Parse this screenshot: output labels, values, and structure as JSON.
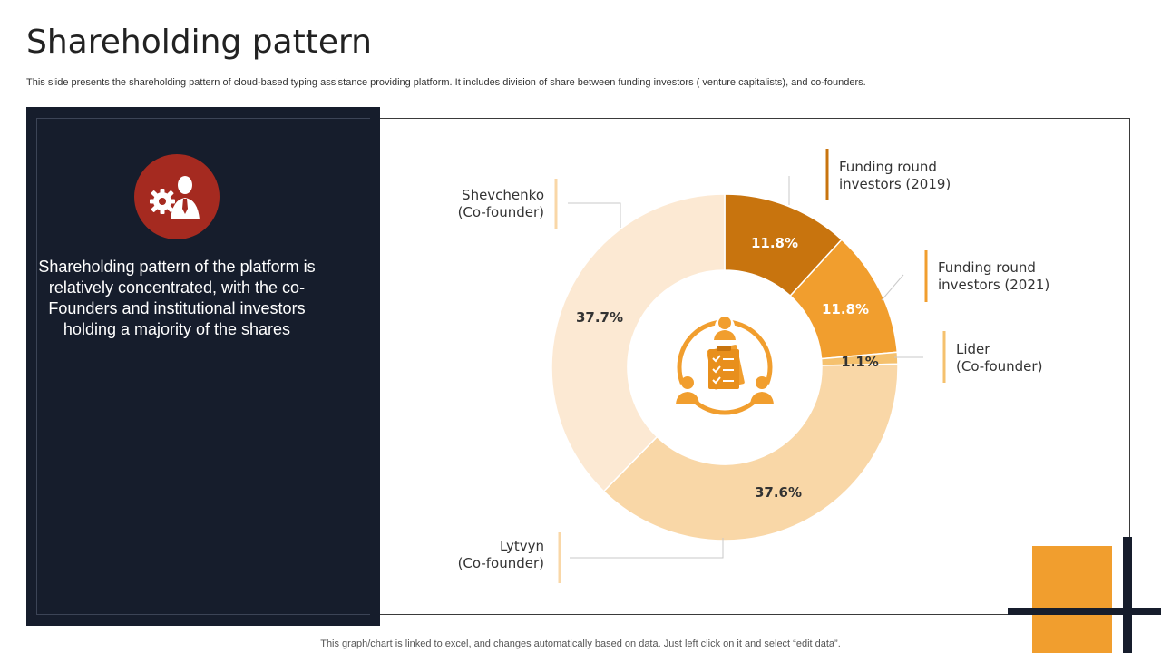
{
  "header": {
    "title": "Shareholding pattern",
    "subtitle": "This slide presents the shareholding pattern of cloud-based typing assistance providing platform. It includes division of share between funding investors ( venture capitalists), and co-founders."
  },
  "panel": {
    "icon": "businessman-gear-icon",
    "text": "Shareholding pattern of the platform is relatively concentrated, with the co-Founders  and institutional investors holding a majority of the shares"
  },
  "center_icon": "team-clipboard-icon",
  "colors": {
    "dark_panel": "#161d2c",
    "badge": "#a52a20",
    "accent": "#f19e2e"
  },
  "chart_data": {
    "type": "pie",
    "variant": "donut",
    "title": "",
    "slices": [
      {
        "label": "Funding round investors (2019)",
        "value": 11.8,
        "display": "11.8%",
        "color": "#c8740e"
      },
      {
        "label": "Funding round investors (2021)",
        "value": 11.8,
        "display": "11.8%",
        "color": "#f19e2e"
      },
      {
        "label": "Lider (Co-founder)",
        "value": 1.1,
        "display": "1.1%",
        "color": "#f5c16e"
      },
      {
        "label": "Lytvyn (Co-founder)",
        "value": 37.6,
        "display": "37.6%",
        "color": "#f9d7a7"
      },
      {
        "label": "Shevchenko (Co-founder)",
        "value": 37.7,
        "display": "37.7%",
        "color": "#fce9d3"
      }
    ],
    "labels_lines": [
      [
        "Funding round",
        "investors (2019)"
      ],
      [
        "Funding round",
        "investors (2021)"
      ],
      [
        "Lider",
        "(Co-founder)"
      ],
      [
        "Lytvyn",
        "(Co-founder)"
      ],
      [
        "Shevchenko",
        "(Co-founder)"
      ]
    ]
  },
  "footer": "This graph/chart is linked to excel, and changes automatically based on data. Just left click on it and select “edit data”."
}
